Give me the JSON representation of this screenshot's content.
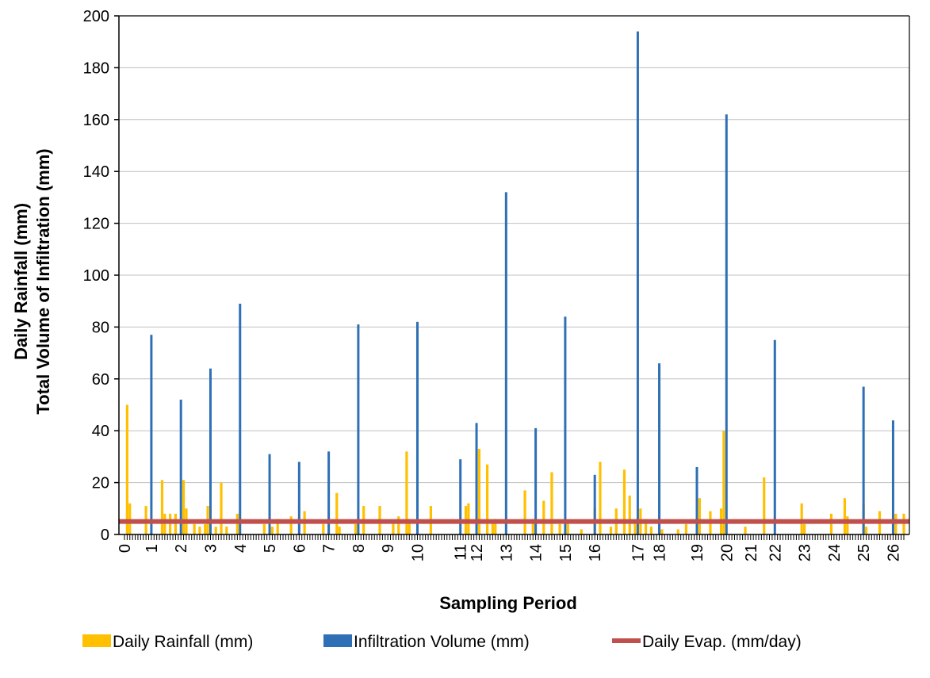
{
  "chart_data": {
    "type": "bar",
    "xlabel": "Sampling Period",
    "ylabel": [
      "Daily Rainfall (mm)",
      "Total Volume of Infiltration (mm)"
    ],
    "ylim": [
      0,
      200
    ],
    "yticks": [
      0,
      20,
      40,
      60,
      80,
      100,
      120,
      140,
      160,
      180,
      200
    ],
    "grid": "horizontal",
    "legend_position": "bottom",
    "x_range_days": [
      0,
      282
    ],
    "x_tick_labels": [
      {
        "label": "0",
        "day": 0
      },
      {
        "label": "1",
        "day": 10
      },
      {
        "label": "2",
        "day": 21
      },
      {
        "label": "3",
        "day": 32
      },
      {
        "label": "4",
        "day": 43
      },
      {
        "label": "5",
        "day": 54
      },
      {
        "label": "6",
        "day": 65
      },
      {
        "label": "7",
        "day": 76
      },
      {
        "label": "8",
        "day": 87
      },
      {
        "label": "9",
        "day": 98
      },
      {
        "label": "10",
        "day": 109
      },
      {
        "label": "11",
        "day": 125
      },
      {
        "label": "12",
        "day": 131
      },
      {
        "label": "13",
        "day": 142
      },
      {
        "label": "14",
        "day": 153
      },
      {
        "label": "15",
        "day": 164
      },
      {
        "label": "16",
        "day": 175
      },
      {
        "label": "17",
        "day": 191
      },
      {
        "label": "18",
        "day": 199
      },
      {
        "label": "19",
        "day": 213
      },
      {
        "label": "20",
        "day": 224
      },
      {
        "label": "21",
        "day": 233
      },
      {
        "label": "22",
        "day": 242
      },
      {
        "label": "23",
        "day": 253
      },
      {
        "label": "24",
        "day": 264
      },
      {
        "label": "25",
        "day": 275
      },
      {
        "label": "26",
        "day": 286
      }
    ],
    "series": [
      {
        "name": "Daily Rainfall (mm)",
        "color": "#FFC000",
        "kind": "bar",
        "points": [
          {
            "day": 1,
            "value": 50
          },
          {
            "day": 2,
            "value": 12
          },
          {
            "day": 8,
            "value": 11
          },
          {
            "day": 14,
            "value": 21
          },
          {
            "day": 15,
            "value": 8
          },
          {
            "day": 17,
            "value": 8
          },
          {
            "day": 19,
            "value": 8
          },
          {
            "day": 22,
            "value": 21
          },
          {
            "day": 23,
            "value": 10
          },
          {
            "day": 26,
            "value": 4
          },
          {
            "day": 28,
            "value": 3
          },
          {
            "day": 30,
            "value": 4
          },
          {
            "day": 31,
            "value": 11
          },
          {
            "day": 34,
            "value": 3
          },
          {
            "day": 36,
            "value": 20
          },
          {
            "day": 38,
            "value": 3
          },
          {
            "day": 42,
            "value": 8
          },
          {
            "day": 52,
            "value": 4
          },
          {
            "day": 55,
            "value": 3
          },
          {
            "day": 57,
            "value": 6
          },
          {
            "day": 62,
            "value": 7
          },
          {
            "day": 67,
            "value": 9
          },
          {
            "day": 74,
            "value": 4
          },
          {
            "day": 79,
            "value": 16
          },
          {
            "day": 80,
            "value": 3
          },
          {
            "day": 86,
            "value": 4
          },
          {
            "day": 89,
            "value": 11
          },
          {
            "day": 95,
            "value": 11
          },
          {
            "day": 100,
            "value": 5
          },
          {
            "day": 102,
            "value": 7
          },
          {
            "day": 105,
            "value": 32
          },
          {
            "day": 106,
            "value": 6
          },
          {
            "day": 114,
            "value": 11
          },
          {
            "day": 127,
            "value": 11
          },
          {
            "day": 128,
            "value": 12
          },
          {
            "day": 132,
            "value": 33
          },
          {
            "day": 135,
            "value": 27
          },
          {
            "day": 137,
            "value": 5
          },
          {
            "day": 138,
            "value": 6
          },
          {
            "day": 149,
            "value": 17
          },
          {
            "day": 152,
            "value": 6
          },
          {
            "day": 156,
            "value": 13
          },
          {
            "day": 159,
            "value": 24
          },
          {
            "day": 162,
            "value": 4
          },
          {
            "day": 165,
            "value": 5
          },
          {
            "day": 170,
            "value": 2
          },
          {
            "day": 175,
            "value": 10
          },
          {
            "day": 177,
            "value": 28
          },
          {
            "day": 181,
            "value": 3
          },
          {
            "day": 183,
            "value": 10
          },
          {
            "day": 186,
            "value": 25
          },
          {
            "day": 188,
            "value": 15
          },
          {
            "day": 190,
            "value": 5
          },
          {
            "day": 192,
            "value": 10
          },
          {
            "day": 194,
            "value": 6
          },
          {
            "day": 196,
            "value": 3
          },
          {
            "day": 200,
            "value": 2
          },
          {
            "day": 206,
            "value": 2
          },
          {
            "day": 209,
            "value": 4
          },
          {
            "day": 214,
            "value": 14
          },
          {
            "day": 218,
            "value": 9
          },
          {
            "day": 222,
            "value": 10
          },
          {
            "day": 223,
            "value": 40
          },
          {
            "day": 231,
            "value": 3
          },
          {
            "day": 238,
            "value": 22
          },
          {
            "day": 252,
            "value": 12
          },
          {
            "day": 253,
            "value": 4
          },
          {
            "day": 263,
            "value": 8
          },
          {
            "day": 268,
            "value": 14
          },
          {
            "day": 269,
            "value": 7
          },
          {
            "day": 275,
            "value": 12
          },
          {
            "day": 276,
            "value": 3
          },
          {
            "day": 281,
            "value": 9
          },
          {
            "day": 287,
            "value": 8
          },
          {
            "day": 290,
            "value": 8
          }
        ]
      },
      {
        "name": "Infiltration Volume (mm)",
        "color": "#2E6FB5",
        "kind": "bar",
        "points": [
          {
            "day": 10,
            "value": 77
          },
          {
            "day": 21,
            "value": 52
          },
          {
            "day": 32,
            "value": 64
          },
          {
            "day": 43,
            "value": 89
          },
          {
            "day": 54,
            "value": 31
          },
          {
            "day": 65,
            "value": 28
          },
          {
            "day": 76,
            "value": 32
          },
          {
            "day": 87,
            "value": 81
          },
          {
            "day": 109,
            "value": 82
          },
          {
            "day": 125,
            "value": 29
          },
          {
            "day": 131,
            "value": 43
          },
          {
            "day": 142,
            "value": 132
          },
          {
            "day": 153,
            "value": 41
          },
          {
            "day": 164,
            "value": 84
          },
          {
            "day": 175,
            "value": 23
          },
          {
            "day": 191,
            "value": 194
          },
          {
            "day": 199,
            "value": 66
          },
          {
            "day": 213,
            "value": 26
          },
          {
            "day": 224,
            "value": 162
          },
          {
            "day": 242,
            "value": 75
          },
          {
            "day": 275,
            "value": 57
          },
          {
            "day": 286,
            "value": 44
          }
        ]
      },
      {
        "name": "Daily Evap. (mm/day)",
        "color": "#C0504D",
        "kind": "line",
        "value": 5
      }
    ]
  }
}
